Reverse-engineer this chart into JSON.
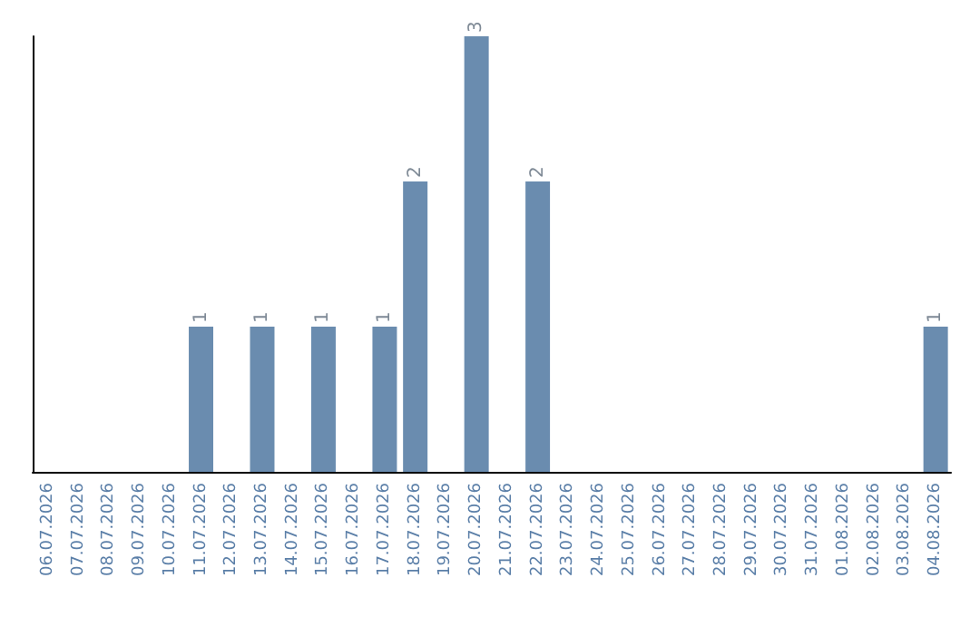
{
  "chart_data": {
    "type": "bar",
    "categories": [
      "06.07.2026",
      "07.07.2026",
      "08.07.2026",
      "09.07.2026",
      "10.07.2026",
      "11.07.2026",
      "12.07.2026",
      "13.07.2026",
      "14.07.2026",
      "15.07.2026",
      "16.07.2026",
      "17.07.2026",
      "18.07.2026",
      "19.07.2026",
      "20.07.2026",
      "21.07.2026",
      "22.07.2026",
      "23.07.2026",
      "24.07.2026",
      "25.07.2026",
      "26.07.2026",
      "27.07.2026",
      "28.07.2026",
      "29.07.2026",
      "30.07.2026",
      "31.07.2026",
      "01.08.2026",
      "02.08.2026",
      "03.08.2026",
      "04.08.2026"
    ],
    "values": [
      0,
      0,
      0,
      0,
      0,
      1,
      0,
      1,
      0,
      1,
      0,
      1,
      2,
      0,
      3,
      0,
      2,
      0,
      0,
      0,
      0,
      0,
      0,
      0,
      0,
      0,
      0,
      0,
      0,
      1
    ],
    "value_labels": [
      null,
      null,
      null,
      null,
      null,
      "1",
      null,
      "1",
      null,
      "1",
      null,
      "1",
      "2",
      null,
      "3",
      null,
      "2",
      null,
      null,
      null,
      null,
      null,
      null,
      null,
      null,
      null,
      null,
      null,
      null,
      "1"
    ],
    "color": "#6a8caf",
    "ylim": [
      0,
      3
    ],
    "tick_labels": "x"
  }
}
